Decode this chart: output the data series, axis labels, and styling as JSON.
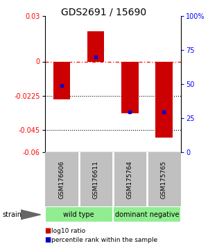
{
  "title": "GDS2691 / 15690",
  "samples": [
    "GSM176606",
    "GSM176611",
    "GSM175764",
    "GSM175765"
  ],
  "log10_ratios": [
    -0.025,
    0.02,
    -0.034,
    -0.05
  ],
  "percentile_ranks": [
    49,
    70,
    30,
    30
  ],
  "groups": [
    {
      "label": "wild type",
      "indices": [
        0,
        1
      ],
      "color": "#90EE90"
    },
    {
      "label": "dominant negative",
      "indices": [
        2,
        3
      ],
      "color": "#90EE90"
    }
  ],
  "left_ylim": [
    -0.06,
    0.03
  ],
  "right_ylim": [
    0,
    100
  ],
  "left_yticks": [
    0.03,
    0,
    -0.0225,
    -0.045,
    -0.06
  ],
  "left_yticklabels": [
    "0.03",
    "0",
    "-0.0225",
    "-0.045",
    "-0.06"
  ],
  "right_yticks": [
    100,
    75,
    50,
    25,
    0
  ],
  "right_yticklabels": [
    "100%",
    "75",
    "50",
    "25",
    "0"
  ],
  "hline_zero": 0,
  "hline_dotted1": -0.0225,
  "hline_dotted2": -0.045,
  "bar_color": "#CC0000",
  "dot_color": "#0000CC",
  "label_log10": "log10 ratio",
  "label_pct": "percentile rank within the sample",
  "strain_label": "strain",
  "sample_label_bg": "#C0C0C0",
  "background_color": "#ffffff"
}
